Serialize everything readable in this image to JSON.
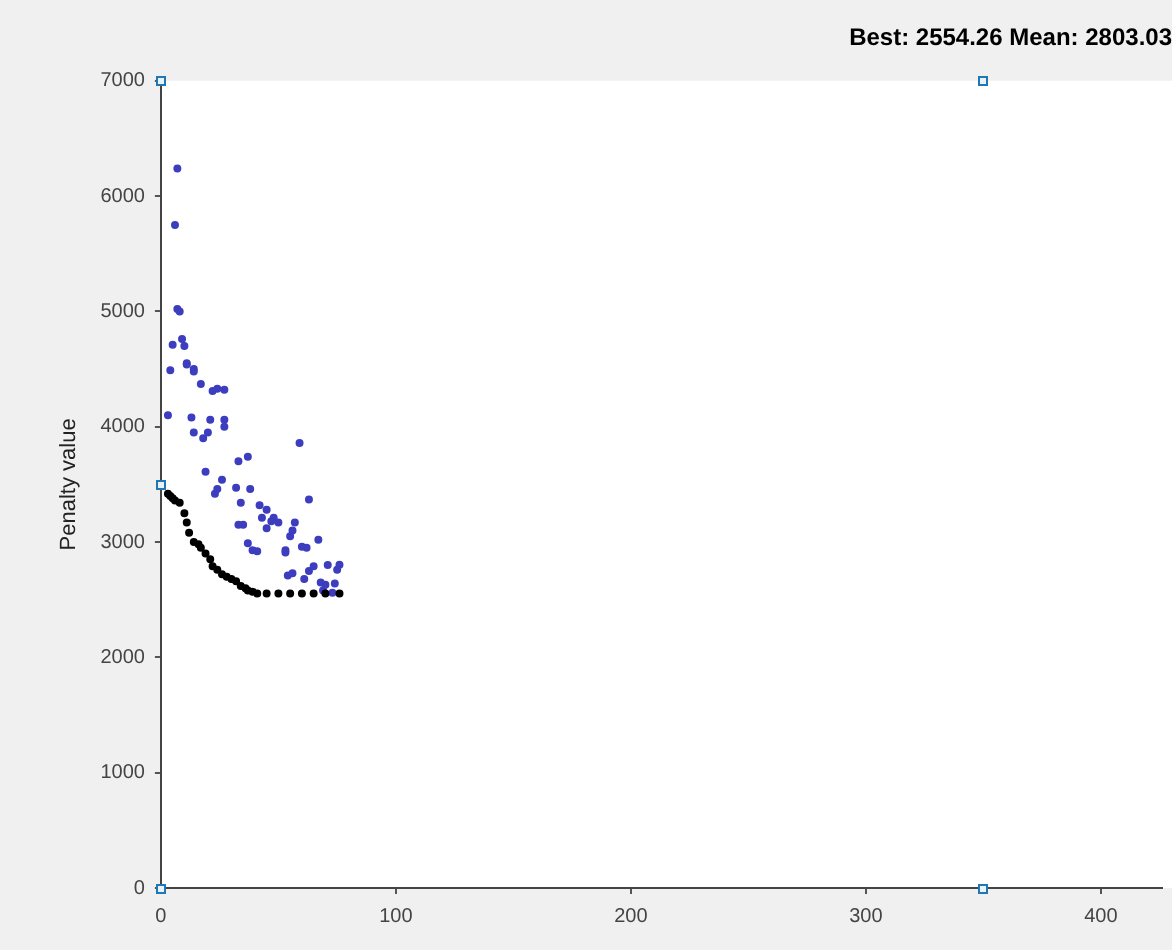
{
  "chart_data": {
    "type": "scatter",
    "title": "Best: 2554.26 Mean: 2803.03",
    "ylabel": "Penalty value",
    "xlim": [
      0,
      426
    ],
    "ylim": [
      0,
      7000
    ],
    "xticks": [
      0,
      100,
      200,
      300,
      400
    ],
    "yticks": [
      0,
      1000,
      2000,
      3000,
      4000,
      5000,
      6000,
      7000
    ],
    "grid": false,
    "legend": false,
    "marker": "circle",
    "series": [
      {
        "color": "#000000",
        "x": [
          0,
          3,
          4,
          5,
          6,
          8,
          10,
          11,
          12,
          14,
          16,
          17,
          19,
          21,
          22,
          24,
          26,
          28,
          30,
          32,
          34,
          36,
          37,
          39,
          41,
          45,
          50,
          55,
          60,
          65,
          70,
          76
        ],
        "values": [
          3490,
          3420,
          3400,
          3380,
          3360,
          3340,
          3250,
          3170,
          3080,
          3000,
          2980,
          2950,
          2900,
          2850,
          2790,
          2760,
          2720,
          2700,
          2680,
          2660,
          2620,
          2600,
          2580,
          2570,
          2554,
          2554,
          2554,
          2554,
          2554,
          2554,
          2554,
          2554
        ]
      },
      {
        "color": "#3d3dbf",
        "x": [
          3,
          4,
          5,
          6,
          7,
          7,
          8,
          9,
          10,
          11,
          11,
          13,
          14,
          14,
          14,
          17,
          18,
          19,
          20,
          21,
          22,
          23,
          24,
          24,
          26,
          27,
          27,
          27,
          32,
          33,
          33,
          34,
          35,
          37,
          37,
          38,
          39,
          41,
          42,
          43,
          45,
          45,
          47,
          48,
          50,
          53,
          53,
          54,
          55,
          56,
          56,
          57,
          59,
          60,
          61,
          62,
          63,
          63,
          65,
          67,
          68,
          69,
          70,
          71,
          73,
          74,
          75,
          76
        ],
        "values": [
          4100,
          4490,
          4710,
          5750,
          6240,
          5020,
          5000,
          4760,
          4700,
          4550,
          4540,
          4080,
          4480,
          4500,
          3950,
          4370,
          3900,
          3610,
          3950,
          4060,
          4310,
          3420,
          4330,
          3460,
          3540,
          4320,
          4060,
          4000,
          3470,
          3700,
          3150,
          3340,
          3150,
          3740,
          2990,
          3460,
          2930,
          2920,
          3320,
          3210,
          3280,
          3120,
          3180,
          3210,
          3170,
          2930,
          2910,
          2710,
          3050,
          3100,
          2730,
          3170,
          3860,
          2960,
          2680,
          2950,
          3370,
          2750,
          2790,
          3020,
          2650,
          2580,
          2630,
          2800,
          2560,
          2640,
          2760,
          2803
        ]
      }
    ]
  }
}
